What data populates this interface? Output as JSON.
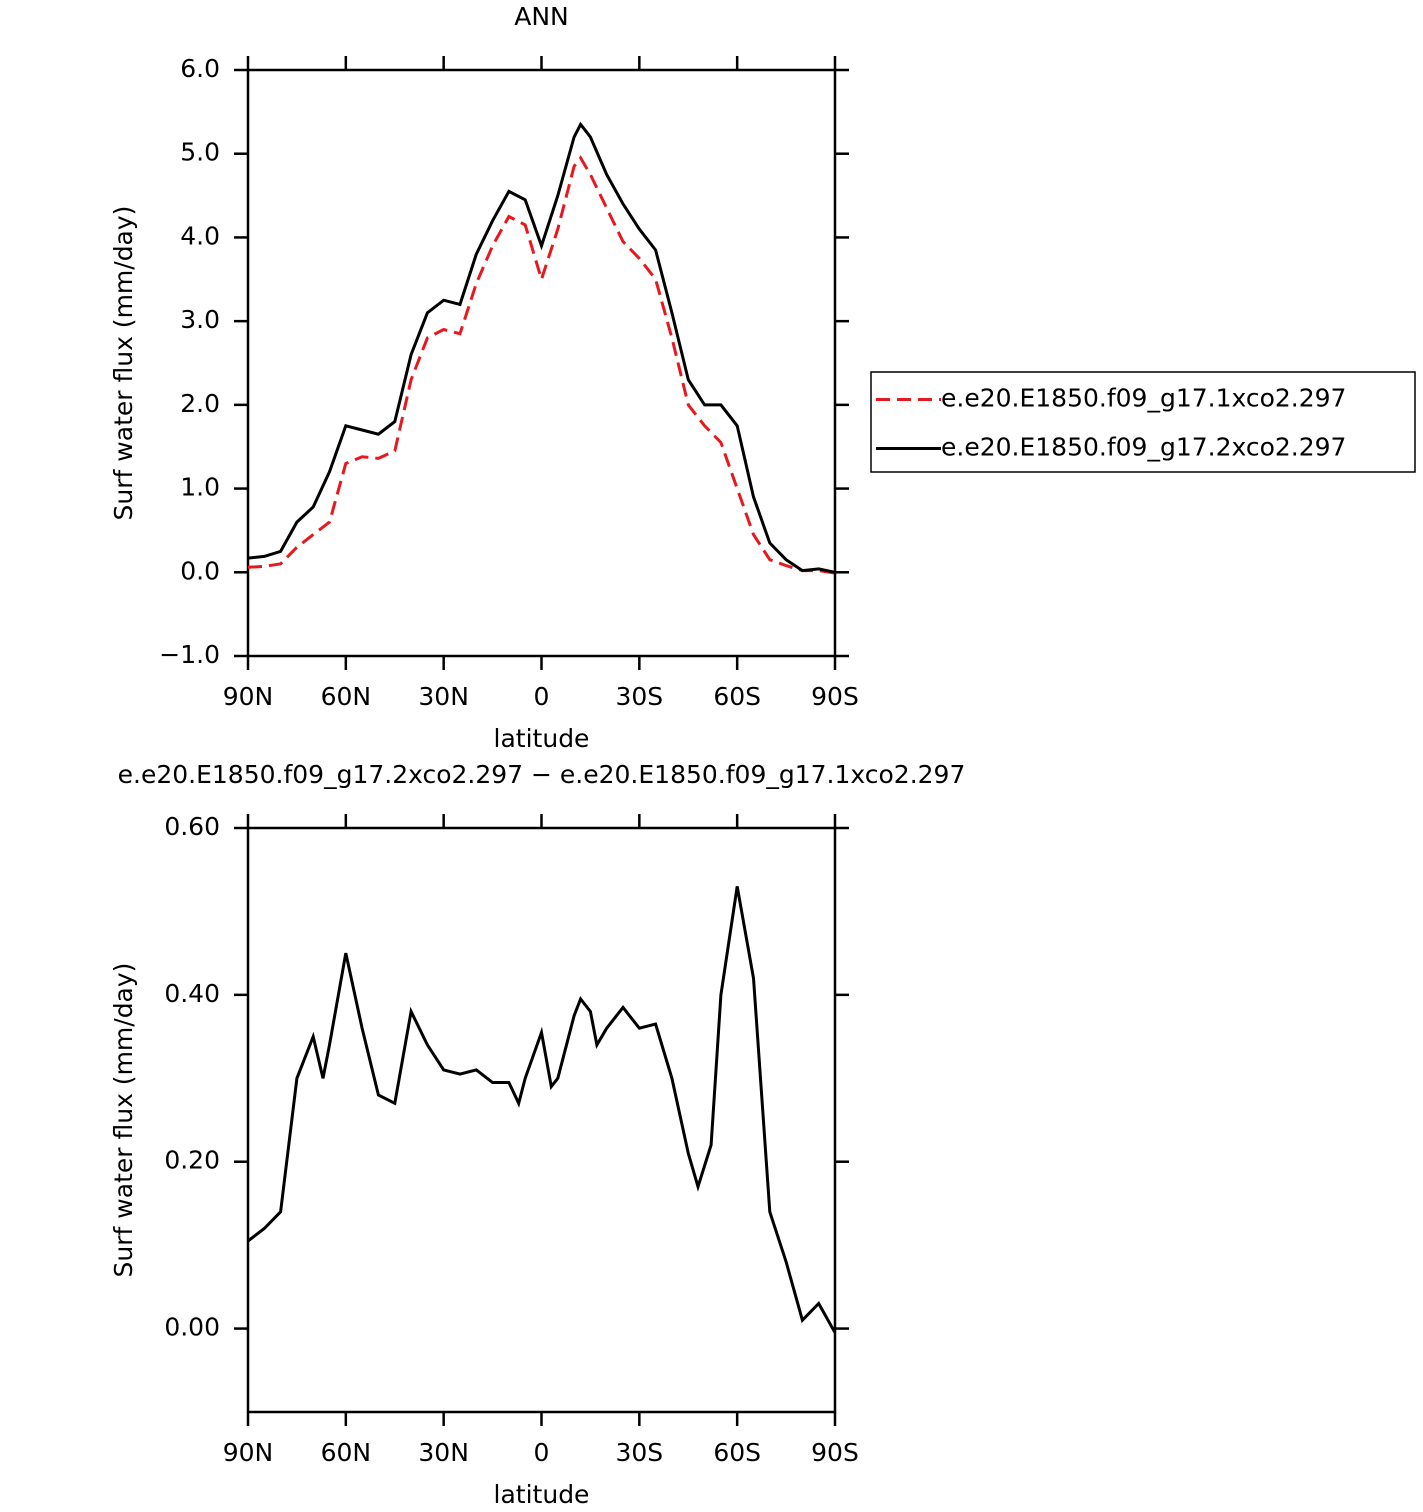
{
  "chart_data": [
    {
      "type": "line",
      "title": "ANN",
      "xlabel": "latitude",
      "ylabel": "Surf water flux (mm/day)",
      "x": [
        90,
        85,
        80,
        75,
        70,
        65,
        60,
        55,
        50,
        45,
        40,
        35,
        30,
        25,
        20,
        15,
        10,
        5,
        0,
        -5,
        -10,
        -12,
        -15,
        -20,
        -25,
        -30,
        -35,
        -40,
        -45,
        -50,
        -55,
        -60,
        -65,
        -70,
        -75,
        -80,
        -85,
        -90
      ],
      "series": [
        {
          "name": "e.e20.E1850.f09_g17.1xco2.297",
          "color": "#e8191e",
          "dash": true,
          "values": [
            0.06,
            0.07,
            0.1,
            0.3,
            0.45,
            0.6,
            1.3,
            1.38,
            1.36,
            1.45,
            2.3,
            2.8,
            2.9,
            2.85,
            3.45,
            3.9,
            4.25,
            4.15,
            3.5,
            4.1,
            4.85,
            4.95,
            4.75,
            4.35,
            3.95,
            3.75,
            3.5,
            2.8,
            2.0,
            1.75,
            1.55,
            1.0,
            0.45,
            0.15,
            0.08,
            0.02,
            0.02,
            -0.01
          ]
        },
        {
          "name": "e.e20.E1850.f09_g17.2xco2.297",
          "color": "#000000",
          "dash": false,
          "values": [
            0.17,
            0.19,
            0.25,
            0.6,
            0.78,
            1.2,
            1.75,
            1.7,
            1.65,
            1.8,
            2.6,
            3.1,
            3.25,
            3.2,
            3.8,
            4.2,
            4.55,
            4.45,
            3.9,
            4.5,
            5.2,
            5.35,
            5.2,
            4.75,
            4.4,
            4.1,
            3.85,
            3.1,
            2.3,
            2.0,
            2.0,
            1.75,
            0.9,
            0.35,
            0.15,
            0.02,
            0.04,
            0.0
          ]
        }
      ],
      "xlim": [
        90,
        -90
      ],
      "xticks": [
        {
          "value": 90,
          "label": "90N"
        },
        {
          "value": 60,
          "label": "60N"
        },
        {
          "value": 30,
          "label": "30N"
        },
        0,
        {
          "value": -30,
          "label": "30S"
        },
        {
          "value": -60,
          "label": "60S"
        },
        {
          "value": -90,
          "label": "90S"
        }
      ],
      "ylim": [
        -1,
        6
      ],
      "yticks": [
        {
          "value": -1,
          "label": "−1.0"
        },
        {
          "value": 0,
          "label": "0.0"
        },
        {
          "value": 1,
          "label": "1.0"
        },
        {
          "value": 2,
          "label": "2.0"
        },
        {
          "value": 3,
          "label": "3.0"
        },
        {
          "value": 4,
          "label": "4.0"
        },
        {
          "value": 5,
          "label": "5.0"
        },
        {
          "value": 6,
          "label": "6.0"
        }
      ],
      "legend": "right"
    },
    {
      "type": "line",
      "title": "e.e20.E1850.f09_g17.2xco2.297 − e.e20.E1850.f09_g17.1xco2.297",
      "xlabel": "latitude",
      "ylabel": "Surf water flux (mm/day)",
      "x": [
        90,
        85,
        80,
        75,
        70,
        67,
        65,
        60,
        55,
        50,
        45,
        40,
        35,
        30,
        25,
        20,
        15,
        10,
        7,
        5,
        0,
        -3,
        -5,
        -10,
        -12,
        -15,
        -17,
        -20,
        -25,
        -30,
        -35,
        -40,
        -45,
        -48,
        -52,
        -55,
        -60,
        -65,
        -70,
        -75,
        -80,
        -85,
        -90
      ],
      "series": [
        {
          "color": "#000000",
          "values": [
            0.105,
            0.12,
            0.14,
            0.3,
            0.35,
            0.3,
            0.34,
            0.45,
            0.36,
            0.28,
            0.27,
            0.38,
            0.34,
            0.31,
            0.305,
            0.31,
            0.295,
            0.295,
            0.27,
            0.3,
            0.355,
            0.29,
            0.3,
            0.375,
            0.395,
            0.38,
            0.34,
            0.36,
            0.385,
            0.36,
            0.365,
            0.3,
            0.21,
            0.17,
            0.22,
            0.4,
            0.53,
            0.42,
            0.14,
            0.08,
            0.01,
            0.03,
            -0.005
          ]
        }
      ],
      "xlim": [
        90,
        -90
      ],
      "xticks": [
        {
          "value": 90,
          "label": "90N"
        },
        {
          "value": 60,
          "label": "60N"
        },
        {
          "value": 30,
          "label": "30N"
        },
        0,
        {
          "value": -30,
          "label": "30S"
        },
        {
          "value": -60,
          "label": "60S"
        },
        {
          "value": -90,
          "label": "90S"
        }
      ],
      "ylim": [
        -0.1,
        0.6
      ],
      "yticks": [
        {
          "value": 0,
          "label": "0.00"
        },
        {
          "value": 0.2,
          "label": "0.20"
        },
        {
          "value": 0.4,
          "label": "0.40"
        },
        {
          "value": 0.6,
          "label": "0.60"
        }
      ]
    }
  ]
}
